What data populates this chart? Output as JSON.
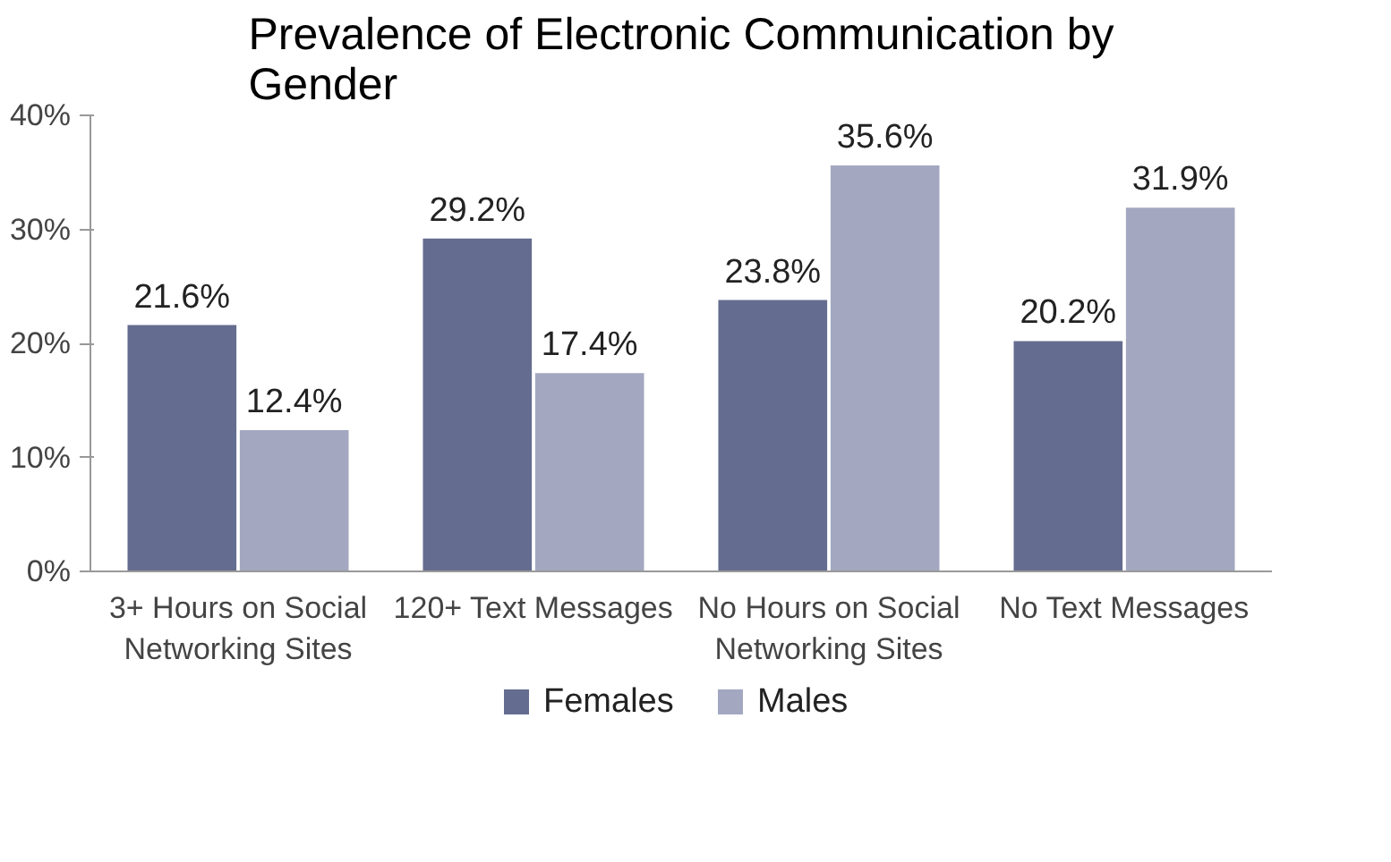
{
  "chart_data": {
    "type": "bar",
    "title": "Prevalence of Electronic Communication by Gender",
    "categories": [
      "3+ Hours on Social Networking Sites",
      "120+ Text Messages",
      "No Hours on Social Networking Sites",
      "No Text Messages"
    ],
    "series": [
      {
        "name": "Females",
        "color": "#646c8f",
        "values": [
          21.6,
          29.2,
          23.8,
          20.2
        ],
        "value_labels": [
          "21.6%",
          "29.2%",
          "23.8%",
          "20.2%"
        ]
      },
      {
        "name": "Males",
        "color": "#a3a8c0",
        "values": [
          12.4,
          17.4,
          35.6,
          31.9
        ],
        "value_labels": [
          "12.4%",
          "17.4%",
          "35.6%",
          "31.9%"
        ]
      }
    ],
    "ylim": [
      0,
      40
    ],
    "yticks": [
      {
        "value": 0,
        "label": "0%"
      },
      {
        "value": 10,
        "label": "10%"
      },
      {
        "value": 20,
        "label": "20%"
      },
      {
        "value": 30,
        "label": "30%"
      },
      {
        "value": 40,
        "label": "40%"
      }
    ],
    "grid": false,
    "legend": "bottom"
  }
}
